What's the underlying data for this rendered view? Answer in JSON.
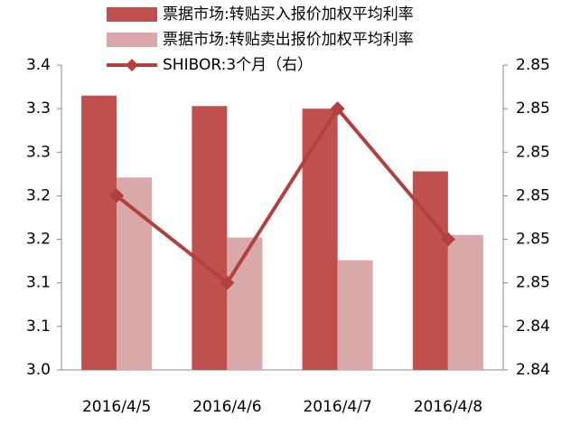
{
  "chart_data": {
    "type": "bar-line",
    "categories": [
      "2016/4/5",
      "2016/4/6",
      "2016/4/7",
      "2016/4/8"
    ],
    "series": [
      {
        "name": "票据市场:转贴买入报价加权平均利率",
        "color": "#c0504d",
        "type": "bar",
        "values": [
          3.315,
          3.303,
          3.3,
          3.228
        ]
      },
      {
        "name": "票据市场:转贴卖出报价加权平均利率",
        "color": "#d9a8a8",
        "type": "bar",
        "values": [
          3.221,
          3.152,
          3.126,
          3.155
        ]
      },
      {
        "name": "SHIBOR:3个月（右）",
        "color": "#b2403d",
        "type": "line",
        "axis": "y2",
        "values": [
          2.847,
          2.845,
          2.849,
          2.846
        ]
      }
    ],
    "ylim": [
      3.0,
      3.35
    ],
    "yticks": [
      {
        "value": 3.0,
        "label": "3.0"
      },
      {
        "value": 3.05,
        "label": "3.1"
      },
      {
        "value": 3.1,
        "label": "3.1"
      },
      {
        "value": 3.15,
        "label": "3.2"
      },
      {
        "value": 3.2,
        "label": "3.2"
      },
      {
        "value": 3.25,
        "label": "3.3"
      },
      {
        "value": 3.3,
        "label": "3.3"
      },
      {
        "value": 3.35,
        "label": "3.4"
      }
    ],
    "y2lim": [
      2.843,
      2.85
    ],
    "y2ticks": [
      {
        "value": 2.843,
        "label": "2.84"
      },
      {
        "value": 2.844,
        "label": "2.84"
      },
      {
        "value": 2.845,
        "label": "2.85"
      },
      {
        "value": 2.846,
        "label": "2.85"
      },
      {
        "value": 2.847,
        "label": "2.85"
      },
      {
        "value": 2.848,
        "label": "2.85"
      },
      {
        "value": 2.849,
        "label": "2.85"
      },
      {
        "value": 2.85,
        "label": "2.85"
      }
    ],
    "legend": "top-left"
  }
}
